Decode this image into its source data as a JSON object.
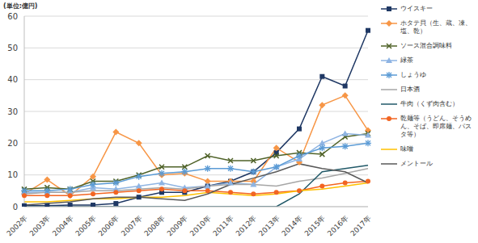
{
  "chart_data": {
    "type": "line",
    "unit_label": "(単位:億円)",
    "categories": [
      "2002年",
      "2003年",
      "2004年",
      "2005年",
      "2006年",
      "2007年",
      "2008年",
      "2009年",
      "2010年",
      "2011年",
      "2012年",
      "2013年",
      "2014年",
      "2015年",
      "2016年",
      "2017年"
    ],
    "ylim": [
      0,
      60
    ],
    "yticks": [
      0,
      10,
      20,
      30,
      40,
      50,
      60
    ],
    "grid": true,
    "legend": "right",
    "series": [
      {
        "name": "ウイスキー",
        "color": "#1f3864",
        "marker": "square",
        "values": [
          0.3,
          0.3,
          0.5,
          0.5,
          1,
          3,
          4.5,
          4.5,
          6.5,
          8,
          11,
          17,
          24.5,
          41,
          38,
          55.5
        ]
      },
      {
        "name": "ホタテ貝（生、蔵、凍、塩、乾）",
        "color": "#f79646",
        "marker": "diamond",
        "values": [
          4,
          8.5,
          3.5,
          9.5,
          23.5,
          20,
          10,
          10.5,
          8,
          8,
          8,
          18.5,
          14,
          32,
          35,
          24
        ]
      },
      {
        "name": "ソース混合調味料",
        "color": "#4f6228",
        "marker": "x",
        "values": [
          5.5,
          6,
          5.5,
          8,
          8,
          10,
          12.5,
          12.5,
          16,
          14.5,
          14.5,
          16,
          17,
          16.5,
          22,
          23
        ]
      },
      {
        "name": "緑茶",
        "color": "#8eb4e3",
        "marker": "triangle",
        "values": [
          4.5,
          4.5,
          4.5,
          6,
          5.5,
          6.5,
          7.5,
          6,
          6.5,
          7.5,
          7,
          12.5,
          15,
          20,
          23,
          22.5
        ]
      },
      {
        "name": "しょうゆ",
        "color": "#5b9bd5",
        "marker": "star",
        "values": [
          5,
          5,
          5.5,
          7,
          7.5,
          9.5,
          10.5,
          11,
          12,
          12,
          11,
          12.5,
          16,
          18.5,
          19,
          20
        ]
      },
      {
        "name": "日本酒",
        "color": "#a6a6a6",
        "marker": "none",
        "values": [
          4,
          4.5,
          4.5,
          5,
          5,
          5.5,
          6,
          5.5,
          6.5,
          7,
          7,
          6.5,
          8,
          9,
          10.5,
          12
        ]
      },
      {
        "name": "牛肉（くず肉含む）",
        "color": "#215968",
        "marker": "none",
        "values": [
          0,
          0,
          0,
          0,
          0,
          0,
          0,
          0,
          0,
          0,
          0,
          0,
          4,
          11,
          12,
          13
        ]
      },
      {
        "name": "乾麺等（うどん、そうめん、そば、即席麺、パスタ等）",
        "color": "#f26522",
        "marker": "circle",
        "values": [
          3.5,
          3.5,
          3.5,
          4,
          4.5,
          5,
          5.5,
          5,
          5,
          4.5,
          4,
          4.5,
          5,
          6.5,
          7.5,
          8
        ]
      },
      {
        "name": "味噌",
        "color": "#ffc000",
        "marker": "none",
        "values": [
          1.5,
          1.5,
          2,
          2.5,
          2.5,
          3,
          3,
          3.5,
          4.5,
          4,
          3.5,
          4,
          5,
          5.5,
          6.5,
          7.5
        ]
      },
      {
        "name": "メントール",
        "color": "#595959",
        "marker": "none",
        "values": [
          0.5,
          1,
          1.5,
          2.5,
          3,
          3,
          2.5,
          2,
          4,
          7,
          9,
          11,
          13.5,
          12,
          11,
          7.5
        ]
      }
    ]
  }
}
